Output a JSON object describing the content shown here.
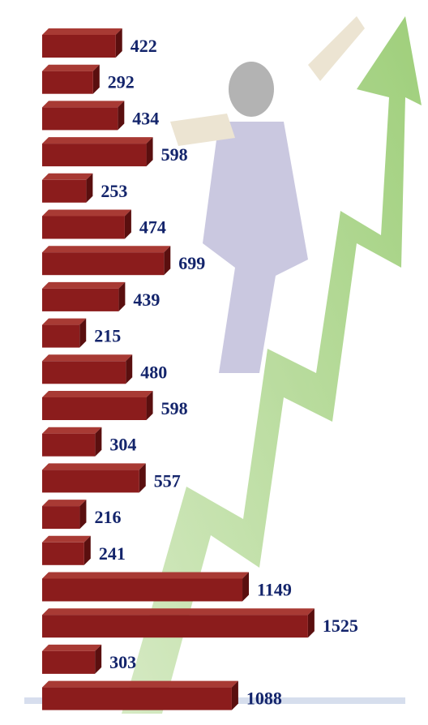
{
  "chart_data": {
    "type": "bar",
    "orientation": "horizontal",
    "categories": [
      null,
      null,
      null,
      null,
      null,
      null,
      null,
      null,
      null,
      null,
      null,
      null,
      null,
      null,
      null,
      null,
      null,
      null,
      null
    ],
    "values": [
      422,
      292,
      434,
      598,
      253,
      474,
      699,
      439,
      215,
      480,
      598,
      304,
      557,
      216,
      241,
      1149,
      1525,
      303,
      1088
    ],
    "color": "#8b1c1c",
    "xlim": [
      0,
      2200
    ]
  }
}
